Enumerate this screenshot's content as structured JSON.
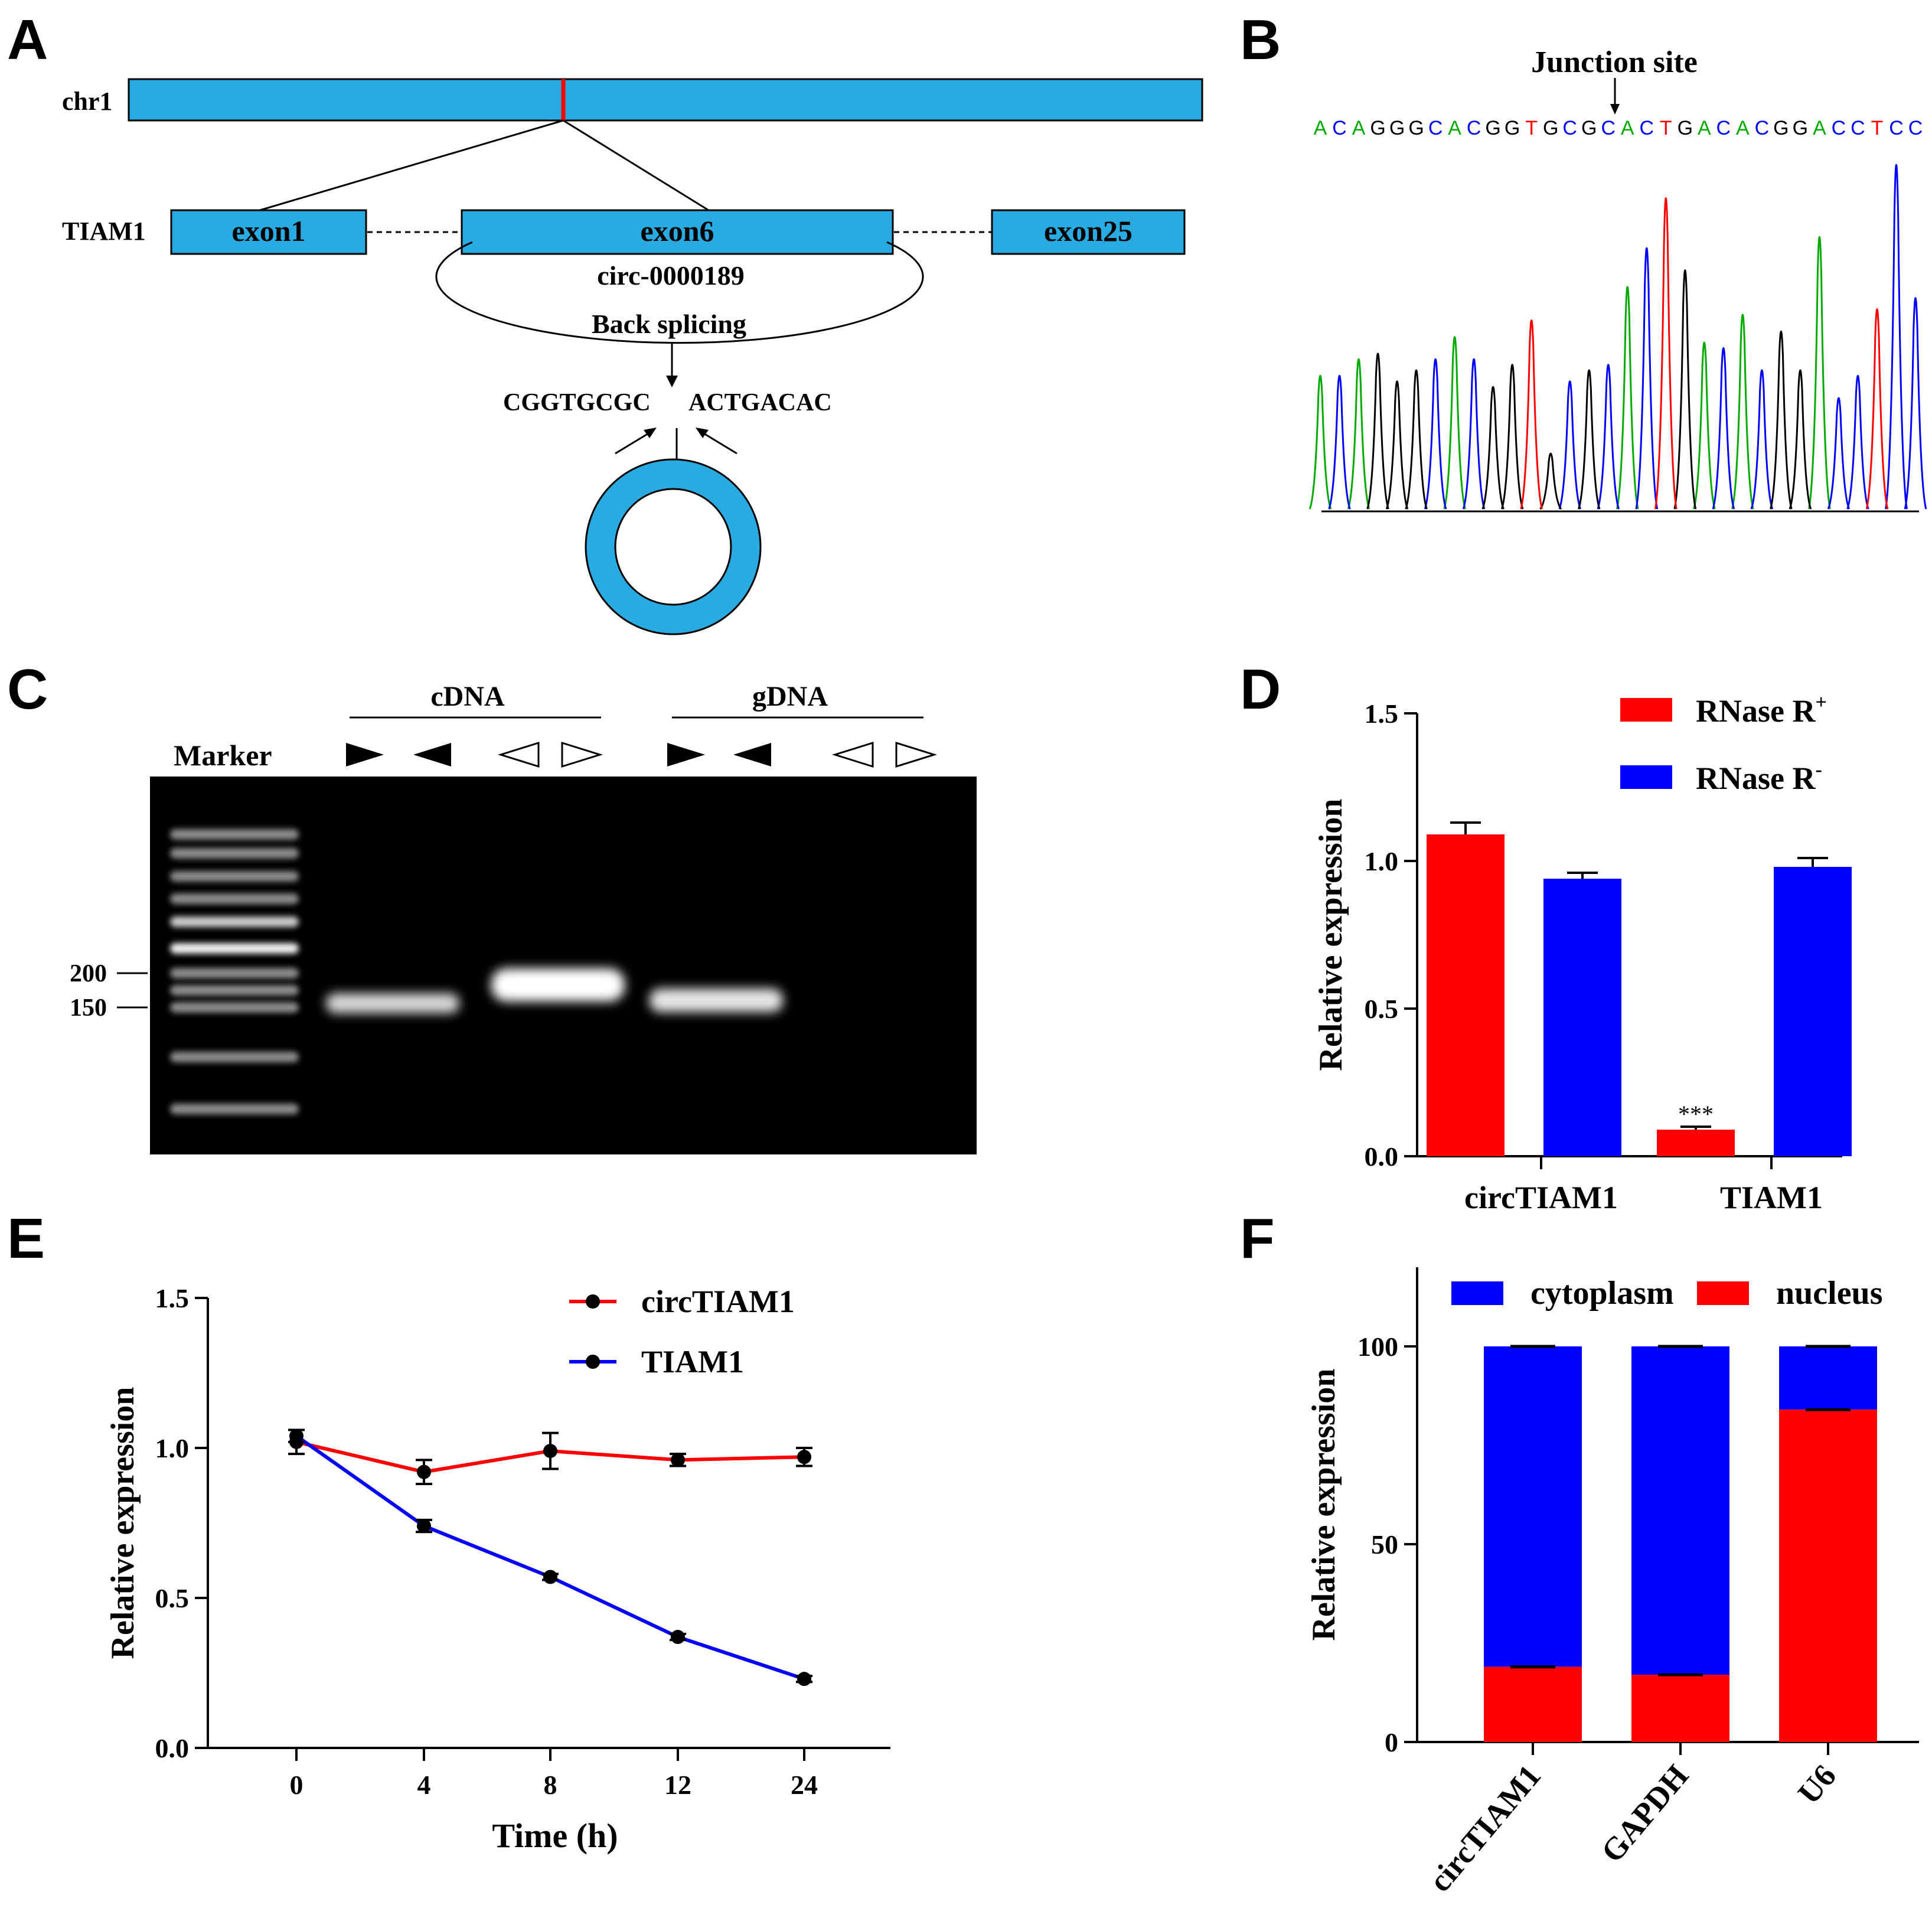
{
  "colors": {
    "blue_box": "#29abe2",
    "red": "#ff0000",
    "blue": "#0000ff",
    "black": "#000000",
    "green": "#00aa00",
    "gel_bg": "#000000"
  },
  "panels": {
    "A": "A",
    "B": "B",
    "C": "C",
    "D": "D",
    "E": "E",
    "F": "F"
  },
  "panelA": {
    "chrom_label": "chr1",
    "gene_label": "TIAM1",
    "exons": [
      "exon1",
      "exon6",
      "exon25"
    ],
    "circ_label": "circ-0000189",
    "splicing_label": "Back splicing",
    "seq_left": "CGGTGCGC",
    "seq_right": "ACTGACAC"
  },
  "panelB": {
    "title": "Junction site",
    "sequence": "ACAGGGCACGGTGCGCACTGACACGGACCTCC",
    "base_colors": {
      "A": "#00aa00",
      "C": "#0000ff",
      "G": "#000000",
      "T": "#ff0000"
    }
  },
  "panelC": {
    "cdna_label": "cDNA",
    "gdna_label": "gDNA",
    "marker_label": "Marker",
    "size_labels": [
      "200",
      "150"
    ]
  },
  "chart_data": [
    {
      "panel": "D",
      "type": "bar",
      "categories": [
        "circTIAM1",
        "TIAM1"
      ],
      "series": [
        {
          "name": "RNase R+",
          "legend_base": "RNase R",
          "legend_sup": "+",
          "color": "#ff0000",
          "values": [
            1.09,
            0.09
          ],
          "errors": [
            0.04,
            0.01
          ]
        },
        {
          "name": "RNase R-",
          "legend_base": "RNase R",
          "legend_sup": "-",
          "color": "#0000ff",
          "values": [
            0.94,
            0.98
          ],
          "errors": [
            0.02,
            0.03
          ]
        }
      ],
      "annotation": "***",
      "ylabel": "Relative expression",
      "xlabel": "",
      "ylim": [
        0,
        1.5
      ],
      "yticks": [
        "0.0",
        "0.5",
        "1.0",
        "1.5"
      ],
      "legend": "top-right"
    },
    {
      "panel": "E",
      "type": "line",
      "x": [
        "0",
        "4",
        "8",
        "12",
        "24"
      ],
      "series": [
        {
          "name": "circTIAM1",
          "color": "#ff0000",
          "values": [
            1.02,
            0.92,
            0.99,
            0.96,
            0.97
          ],
          "errors": [
            0.04,
            0.04,
            0.06,
            0.02,
            0.03
          ]
        },
        {
          "name": "TIAM1",
          "color": "#0000ff",
          "values": [
            1.04,
            0.74,
            0.57,
            0.37,
            0.23
          ],
          "errors": [
            0.02,
            0.02,
            0.01,
            0.01,
            0.01
          ]
        }
      ],
      "xlabel": "Time (h)",
      "ylabel": "Relative expression",
      "ylim": [
        0,
        1.5
      ],
      "yticks": [
        "0.0",
        "0.5",
        "1.0",
        "1.5"
      ],
      "legend": "top-right"
    },
    {
      "panel": "F",
      "type": "bar",
      "stacked": true,
      "categories": [
        "circTIAM1",
        "GAPDH",
        "U6"
      ],
      "series": [
        {
          "name": "nucleus",
          "color": "#ff0000",
          "values": [
            19,
            17,
            84
          ]
        },
        {
          "name": "cytoplasm",
          "color": "#0000ff",
          "values": [
            81,
            83,
            16
          ]
        }
      ],
      "legend_order": [
        "cytoplasm",
        "nucleus"
      ],
      "ylabel": "Relative expression",
      "ylim": [
        0,
        120
      ],
      "yticks": [
        "0",
        "50",
        "100"
      ],
      "legend": "top"
    }
  ]
}
